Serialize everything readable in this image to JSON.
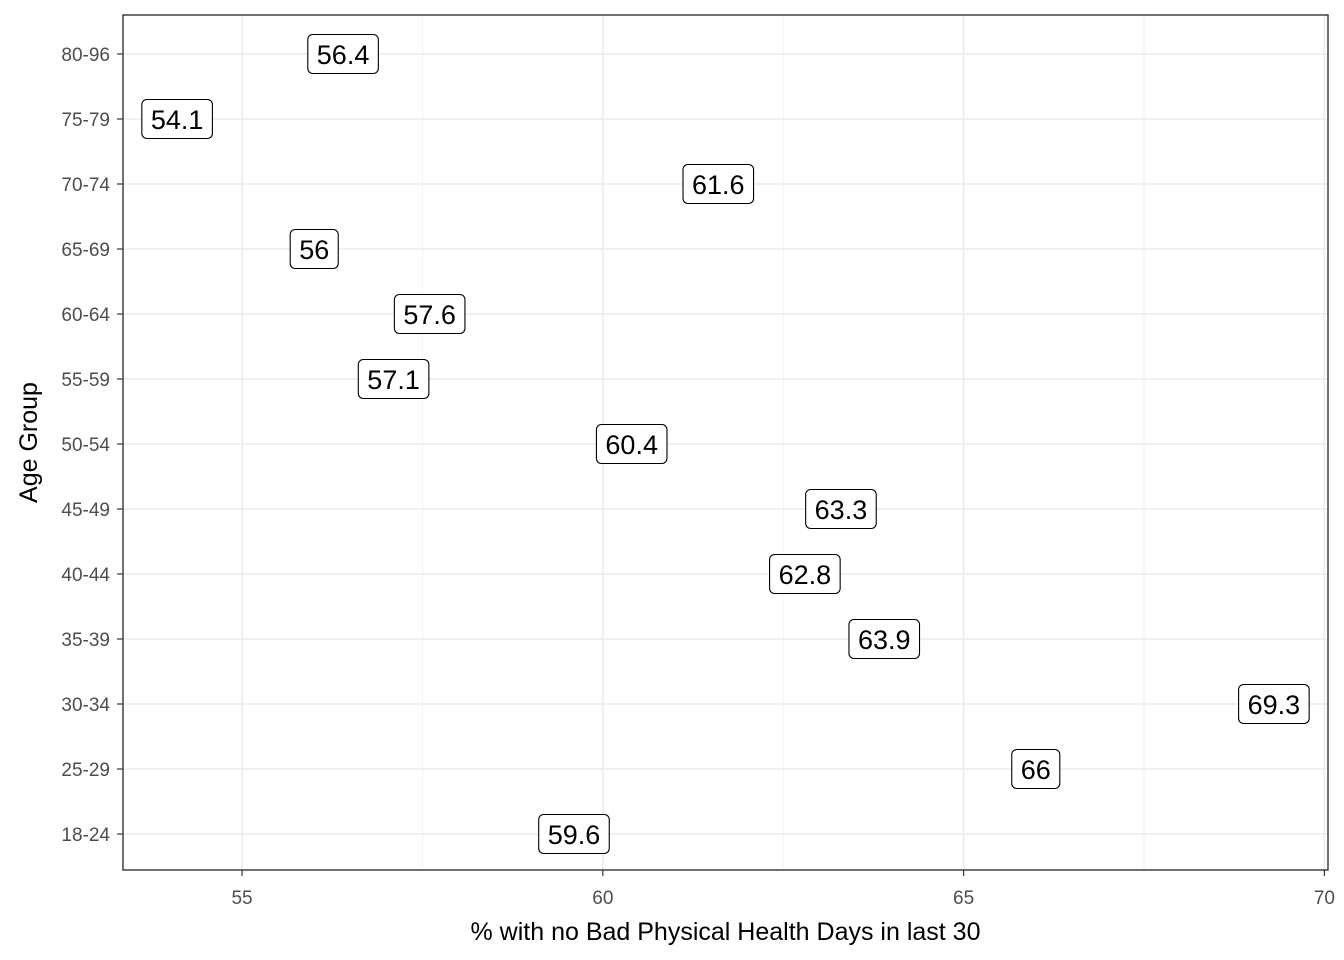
{
  "chart_data": {
    "type": "scatter",
    "xlabel": "% with no Bad Physical Health Days in last 30",
    "ylabel": "Age Group",
    "xlim": [
      53.35,
      70.05
    ],
    "x_ticks": [
      "55",
      "60",
      "65",
      "70"
    ],
    "x_tick_values": [
      55,
      60,
      65,
      70
    ],
    "x_minor_values": [
      57.5,
      62.5,
      67.5
    ],
    "categories": [
      "18-24",
      "25-29",
      "30-34",
      "35-39",
      "40-44",
      "45-49",
      "50-54",
      "55-59",
      "60-64",
      "65-69",
      "70-74",
      "75-79",
      "80-96"
    ],
    "values": [
      59.6,
      66,
      69.3,
      63.9,
      62.8,
      63.3,
      60.4,
      57.1,
      57.6,
      56,
      61.6,
      54.1,
      56.4
    ],
    "labels": [
      "59.6",
      "66",
      "69.3",
      "63.9",
      "62.8",
      "63.3",
      "60.4",
      "57.1",
      "57.6",
      "56",
      "61.6",
      "54.1",
      "56.4"
    ],
    "grid": true,
    "legend": "none",
    "point_style": "label"
  }
}
